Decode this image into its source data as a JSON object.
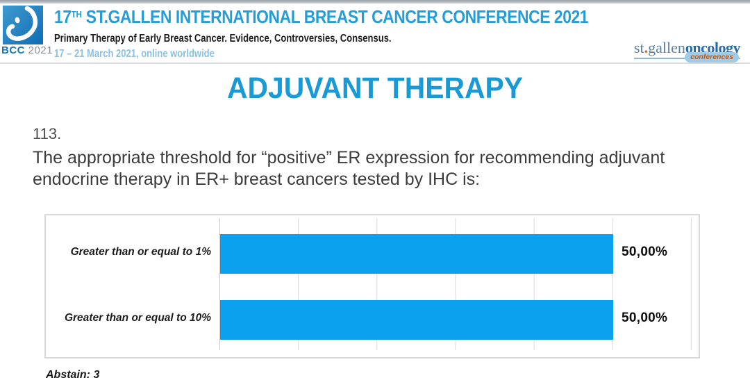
{
  "header": {
    "logo_badge": {
      "bcc": "BCC",
      "year": "2021"
    },
    "title_num": "17",
    "title_sup": "TH",
    "title_rest": " ST.GALLEN INTERNATIONAL BREAST CANCER CONFERENCE 2021",
    "subtitle": "Primary Therapy of Early Breast Cancer. Evidence, Controversies, Consensus.",
    "dates": "17 – 21 March 2021, online worldwide",
    "right_logo": {
      "st": "st",
      "dot": ".",
      "gallen": "gallen",
      "oncology": "oncology",
      "badge": "conferences"
    }
  },
  "slide": {
    "title": "ADJUVANT THERAPY",
    "question_number": "113.",
    "question": "The appropriate threshold for “positive” ER expression for recommending adjuvant endocrine therapy in ER+ breast cancers tested by IHC is:"
  },
  "chart_data": {
    "type": "bar",
    "orientation": "horizontal",
    "title": "",
    "categories": [
      "Greater than or equal to 1%",
      "Greater than or equal to 10%"
    ],
    "values": [
      50,
      50
    ],
    "value_labels": [
      "50,00%",
      "50,00%"
    ],
    "xlim": [
      0,
      60
    ],
    "gridline_interval": 10,
    "grid": true,
    "legend": false,
    "bar_color": "#0ca1ef",
    "abstain_label": "Abstain: 3"
  },
  "colors": {
    "header_blue": "#259dd6",
    "dates_blue": "#8ac2e0",
    "slide_title_blue": "#1a9ad5",
    "bar_blue": "#0ca1ef",
    "question_gray": "#3c3c3c"
  }
}
